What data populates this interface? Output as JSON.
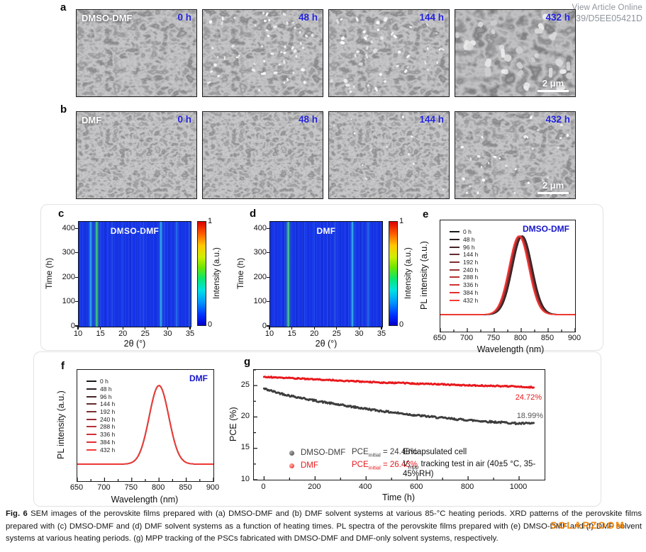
{
  "header": {
    "view_article_online": "View Article Online",
    "doi_fragment": "39/D5EE05421D"
  },
  "watermark_text": "SOLARZOOM",
  "sem_rows": [
    {
      "panel": "a",
      "solvent": "DMSO-DMF",
      "frames": [
        {
          "time": "0 h"
        },
        {
          "time": "48 h"
        },
        {
          "time": "144 h"
        },
        {
          "time": "432 h",
          "scalebar": "2 μm"
        }
      ]
    },
    {
      "panel": "b",
      "solvent": "DMF",
      "frames": [
        {
          "time": "0 h"
        },
        {
          "time": "48 h"
        },
        {
          "time": "144 h"
        },
        {
          "time": "432 h",
          "scalebar": "2 μm"
        }
      ]
    }
  ],
  "chart_data": [
    {
      "type": "heatmap",
      "panel": "c",
      "title": "DMSO-DMF",
      "xlabel": "2θ (°)",
      "ylabel": "Time (h)",
      "xlim": [
        10,
        35
      ],
      "ylim": [
        0,
        430
      ],
      "xticks": [
        10,
        15,
        20,
        25,
        30,
        35
      ],
      "yticks": [
        0,
        100,
        200,
        300,
        400
      ],
      "colorbar": {
        "label": "Intensity (a.u.)",
        "min": 0,
        "max": 1
      },
      "peaks": [
        {
          "two_theta": 12.7,
          "intensity": 0.55,
          "color": "#3fd9e8"
        },
        {
          "two_theta": 14.1,
          "intensity": 0.85,
          "color": "#46e04e"
        },
        {
          "two_theta": 19.9,
          "intensity": 0.22,
          "color": "#2a5df2"
        },
        {
          "two_theta": 24.5,
          "intensity": 0.28,
          "color": "#2a6bf2"
        },
        {
          "two_theta": 28.3,
          "intensity": 0.6,
          "color": "#3bd6e8"
        },
        {
          "two_theta": 31.8,
          "intensity": 0.38,
          "color": "#2f8df0"
        },
        {
          "two_theta": 34.8,
          "intensity": 0.22,
          "color": "#2a5df2"
        }
      ]
    },
    {
      "type": "heatmap",
      "panel": "d",
      "title": "DMF",
      "xlabel": "2θ (°)",
      "ylabel": "Time (h)",
      "xlim": [
        10,
        35
      ],
      "ylim": [
        0,
        430
      ],
      "xticks": [
        10,
        15,
        20,
        25,
        30,
        35
      ],
      "yticks": [
        0,
        100,
        200,
        300,
        400
      ],
      "colorbar": {
        "label": "Intensity (a.u.)",
        "min": 0,
        "max": 1
      },
      "peaks": [
        {
          "two_theta": 14.1,
          "intensity": 0.8,
          "color": "#46e04e"
        },
        {
          "two_theta": 19.9,
          "intensity": 0.15,
          "color": "#2a5df2"
        },
        {
          "two_theta": 24.5,
          "intensity": 0.15,
          "color": "#2a5df2"
        },
        {
          "two_theta": 28.3,
          "intensity": 0.62,
          "color": "#3bd6e8"
        },
        {
          "two_theta": 31.8,
          "intensity": 0.3,
          "color": "#2f8df0"
        }
      ]
    },
    {
      "type": "line",
      "panel": "e",
      "title": "DMSO-DMF",
      "xlabel": "Wavelength (nm)",
      "ylabel": "PL intensity (a.u.)",
      "xlim": [
        650,
        900
      ],
      "xticks": [
        650,
        700,
        750,
        800,
        850,
        900
      ],
      "legend_position": "upper left",
      "series": [
        {
          "name": "0 h",
          "peak_nm": 802.0,
          "color": "#1a1a1a"
        },
        {
          "name": "48 h",
          "peak_nm": 801.5,
          "color": "#2b2022"
        },
        {
          "name": "96 h",
          "peak_nm": 801.0,
          "color": "#452527"
        },
        {
          "name": "144 h",
          "peak_nm": 799.5,
          "color": "#632b2d"
        },
        {
          "name": "192 h",
          "peak_nm": 798.5,
          "color": "#7e2e30"
        },
        {
          "name": "240 h",
          "peak_nm": 798.0,
          "color": "#9b3032"
        },
        {
          "name": "288 h",
          "peak_nm": 797.0,
          "color": "#b63234"
        },
        {
          "name": "336 h",
          "peak_nm": 796.5,
          "color": "#cf3133"
        },
        {
          "name": "384 h",
          "peak_nm": 796.0,
          "color": "#e52e2f"
        },
        {
          "name": "432 h",
          "peak_nm": 795.5,
          "color": "#f83b36"
        }
      ]
    },
    {
      "type": "line",
      "panel": "f",
      "title": "DMF",
      "xlabel": "Wavelength (nm)",
      "ylabel": "PL intensity (a.u.)",
      "xlim": [
        650,
        900
      ],
      "xticks": [
        650,
        700,
        750,
        800,
        850,
        900
      ],
      "legend_position": "upper left",
      "series": [
        {
          "name": "0 h",
          "peak_nm": 800.0,
          "color": "#1a1a1a"
        },
        {
          "name": "48 h",
          "peak_nm": 800.0,
          "color": "#2b2022"
        },
        {
          "name": "96 h",
          "peak_nm": 800.2,
          "color": "#452527"
        },
        {
          "name": "144 h",
          "peak_nm": 800.0,
          "color": "#632b2d"
        },
        {
          "name": "192 h",
          "peak_nm": 800.1,
          "color": "#7e2e30"
        },
        {
          "name": "240 h",
          "peak_nm": 799.9,
          "color": "#9b3032"
        },
        {
          "name": "288 h",
          "peak_nm": 800.0,
          "color": "#b63234"
        },
        {
          "name": "336 h",
          "peak_nm": 800.1,
          "color": "#cf3133"
        },
        {
          "name": "384 h",
          "peak_nm": 800.0,
          "color": "#e52e2f"
        },
        {
          "name": "432 h",
          "peak_nm": 800.0,
          "color": "#f83b36"
        }
      ]
    },
    {
      "type": "scatter",
      "panel": "g",
      "xlabel": "Time (h)",
      "ylabel": "PCE (%)",
      "xlim": [
        -40,
        1100
      ],
      "ylim": [
        10,
        27.5
      ],
      "xticks": [
        0,
        200,
        400,
        600,
        800,
        1000
      ],
      "yticks": [
        10,
        15,
        20,
        25
      ],
      "series": [
        {
          "name": "DMSO-DMF",
          "color": "#3d3d3d",
          "pce_prefix": "PCE",
          "pce_sub": "initial",
          "pce_eq": " = 24.48%",
          "final_label": "18.99%",
          "x": [
            0,
            50,
            100,
            150,
            200,
            250,
            300,
            350,
            400,
            450,
            500,
            550,
            600,
            650,
            700,
            750,
            800,
            850,
            900,
            950,
            1000,
            1060
          ],
          "y": [
            24.5,
            23.9,
            23.4,
            23.0,
            22.6,
            22.25,
            21.9,
            21.6,
            21.3,
            21.0,
            20.75,
            20.5,
            20.25,
            20.05,
            19.85,
            19.65,
            19.5,
            19.35,
            19.2,
            19.1,
            18.95,
            18.99
          ]
        },
        {
          "name": "DMF",
          "color": "#e8191d",
          "pce_prefix": "PCE",
          "pce_sub": "initial",
          "pce_eq": " = 26.43%",
          "final_label": "24.72%",
          "x": [
            0,
            50,
            100,
            150,
            200,
            250,
            300,
            350,
            400,
            450,
            500,
            550,
            600,
            650,
            700,
            750,
            800,
            850,
            900,
            950,
            1000,
            1060
          ],
          "y": [
            26.4,
            26.3,
            26.2,
            26.1,
            26.0,
            25.9,
            25.8,
            25.7,
            25.6,
            25.5,
            25.45,
            25.4,
            25.3,
            25.25,
            25.2,
            25.1,
            25.05,
            25.0,
            24.95,
            24.9,
            24.85,
            24.72
          ]
        }
      ],
      "notes": {
        "line1": "Encapsulated cell",
        "v_italic": "V",
        "v_sub": "mpp",
        "line2_rest": " tracking test in air (40±5 °C, 35-45%RH)"
      }
    }
  ],
  "caption": {
    "label": "Fig. 6",
    "text": " SEM images of the perovskite films prepared with (a) DMSO-DMF and (b) DMF solvent systems at various 85-°C heating periods. XRD patterns of the perovskite films prepared with (c) DMSO-DMF and (d) DMF solvent systems as a function of heating times. PL spectra of the perovskite films prepared with (e) DMSO-DMF and (f) DMF solvent systems at various heating periods. (g) MPP tracking of the PSCs fabricated with DMSO-DMF and DMF-only solvent systems, respectively."
  }
}
